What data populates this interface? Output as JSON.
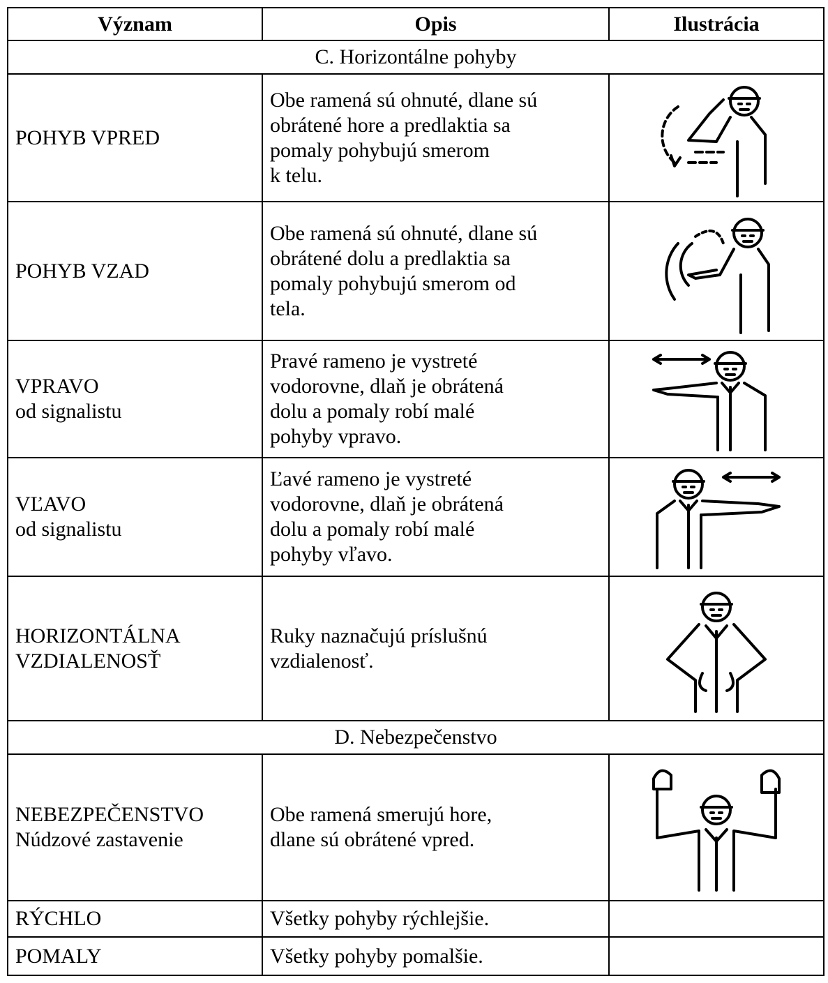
{
  "table": {
    "header": [
      "Význam",
      "Opis",
      "Ilustrácia"
    ],
    "rows": [
      {
        "section": "C. Horizontálne pohyby"
      },
      {
        "meaning": [
          "POHYB VPRED"
        ],
        "description": [
          "Obe ramená sú ohnuté, dlane sú",
          "obrátené hore a predlaktia sa",
          "pomaly pohybujú smerom",
          "k telu."
        ]
      },
      {
        "meaning": [
          "POHYB VZAD"
        ],
        "description": [
          "Obe ramená sú ohnuté, dlane sú",
          "obrátené dolu a predlaktia sa",
          "pomaly pohybujú smerom od",
          "tela."
        ]
      },
      {
        "meaning": [
          "VPRAVO",
          "od signalistu"
        ],
        "description": [
          "Pravé rameno je vystreté",
          "vodorovne, dlaň je obrátená",
          "dolu a pomaly robí malé",
          "pohyby vpravo."
        ]
      },
      {
        "meaning": [
          "VĽAVO",
          "od signalistu"
        ],
        "description": [
          "Ľavé rameno je vystreté",
          "vodorovne, dlaň je obrátená",
          "dolu a pomaly robí malé",
          "pohyby vľavo."
        ]
      },
      {
        "meaning": [
          "HORIZONTÁLNA",
          "VZDIALENOSŤ"
        ],
        "description": [
          "Ruky naznačujú príslušnú",
          "vzdialenosť."
        ]
      },
      {
        "section": "D. Nebezpečenstvo"
      },
      {
        "meaning": [
          "NEBEZPEČENSTVO",
          "Núdzové zastavenie"
        ],
        "description": [
          "Obe ramená smerujú hore,",
          "dlane sú obrátené vpred."
        ]
      },
      {
        "meaning": [
          "RÝCHLO"
        ],
        "description": [
          "Všetky pohyby rýchlejšie."
        ]
      },
      {
        "meaning": [
          "POMALY"
        ],
        "description": [
          "Všetky pohyby pomalšie."
        ]
      }
    ]
  }
}
